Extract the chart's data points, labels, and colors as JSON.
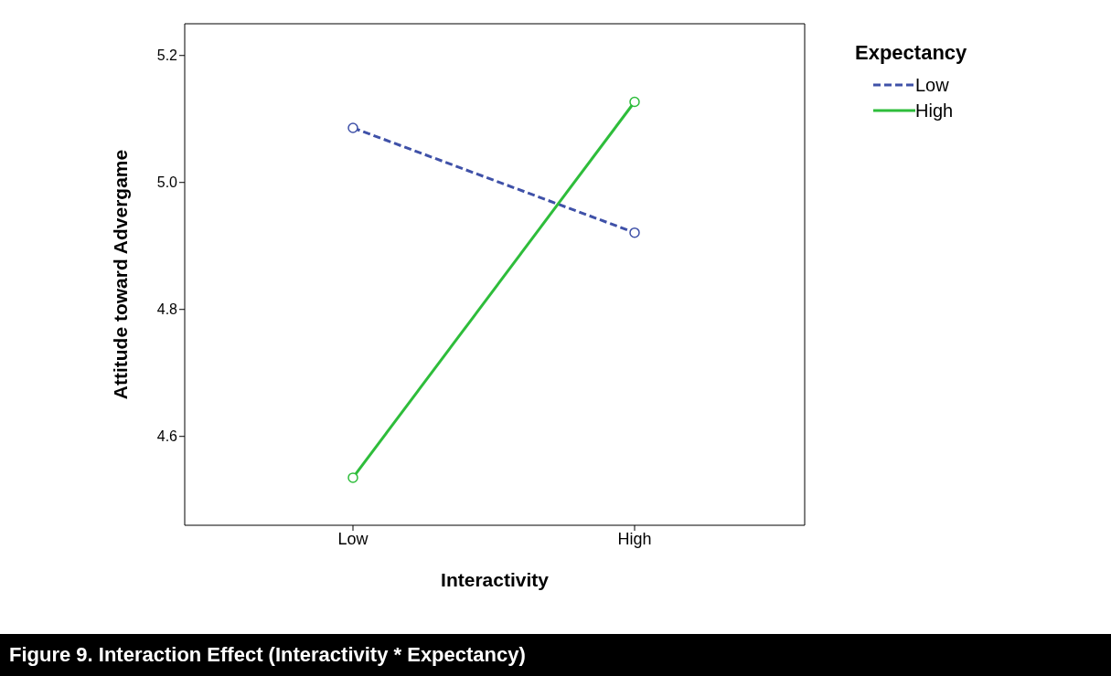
{
  "chart_data": {
    "type": "line",
    "title": "Figure 9. Interaction Effect (Interactivity * Expectancy)",
    "xlabel": "Interactivity",
    "ylabel": "Attitude toward Advergame",
    "legend_title": "Expectancy",
    "categories": [
      "Low",
      "High"
    ],
    "series": [
      {
        "name": "Low",
        "color": "#3f51a8",
        "line_style": "dashed",
        "values": [
          5.086,
          4.921
        ]
      },
      {
        "name": "High",
        "color": "#2ebd3b",
        "line_style": "solid",
        "values": [
          4.535,
          5.127
        ]
      }
    ],
    "ylim": [
      4.46,
      5.25
    ],
    "yticks": [
      {
        "value": 4.6,
        "label": "4.6"
      },
      {
        "value": 4.8,
        "label": "4.8"
      },
      {
        "value": 5.0,
        "label": "5.0"
      },
      {
        "value": 5.2,
        "label": "5.2"
      }
    ],
    "grid": false,
    "legend": "top right",
    "marker": "circle"
  }
}
